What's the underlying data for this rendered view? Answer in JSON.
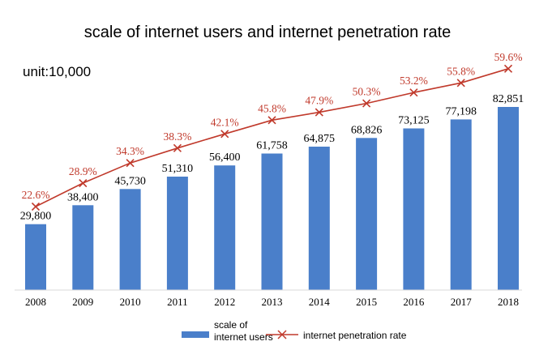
{
  "chart_data": {
    "type": "bar",
    "title": "scale of internet users and internet penetration rate",
    "unit_label": "unit:10,000",
    "categories": [
      "2008",
      "2009",
      "2010",
      "2011",
      "2012",
      "2013",
      "2014",
      "2015",
      "2016",
      "2017",
      "2018"
    ],
    "series": [
      {
        "name": "scale of internet users",
        "type": "bar",
        "color": "#4a7fca",
        "values": [
          29800,
          38400,
          45730,
          51310,
          56400,
          61758,
          64875,
          68826,
          73125,
          77198,
          82851
        ],
        "labels": [
          "29,800",
          "38,400",
          "45,730",
          "51,310",
          "56,400",
          "61,758",
          "64,875",
          "68,826",
          "73,125",
          "77,198",
          "82,851"
        ]
      },
      {
        "name": "internet penetration rate",
        "type": "line",
        "marker": "x",
        "color": "#c0392b",
        "values": [
          22.6,
          28.9,
          34.3,
          38.3,
          42.1,
          45.8,
          47.9,
          50.3,
          53.2,
          55.8,
          59.6
        ],
        "labels": [
          "22.6%",
          "28.9%",
          "34.3%",
          "38.3%",
          "42.1%",
          "45.8%",
          "47.9%",
          "50.3%",
          "53.2%",
          "55.8%",
          "59.6%"
        ]
      }
    ],
    "legend": {
      "position": "bottom",
      "bar_label_line1": "scale of",
      "bar_label_line2": "internet users",
      "line_label": "internet penetration rate"
    },
    "grid": false
  }
}
